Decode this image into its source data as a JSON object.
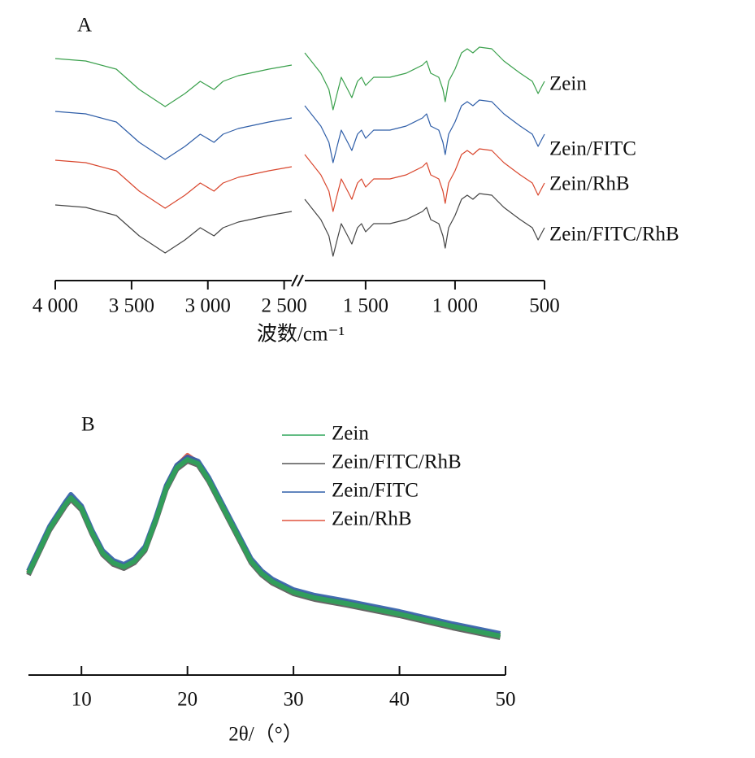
{
  "chart_data": [
    {
      "type": "line",
      "label": "A",
      "xlabel": "波数/cm⁻¹",
      "xlim": [
        4000,
        500
      ],
      "xbreak": [
        2450,
        1840
      ],
      "ylim": [
        0,
        270
      ],
      "xticks": [
        {
          "value": 4000,
          "label": "4 000"
        },
        {
          "value": 3500,
          "label": "3 500"
        },
        {
          "value": 3000,
          "label": "3 000"
        },
        {
          "value": 2500,
          "label": "2 500"
        },
        {
          "value": 1500,
          "label": "1 500"
        },
        {
          "value": 1000,
          "label": "1 000"
        },
        500
      ],
      "x": [
        4000,
        3800,
        3600,
        3450,
        3280,
        3150,
        3050,
        2960,
        2900,
        2800,
        2600,
        2450,
        2000,
        1840,
        1750,
        1705,
        1682,
        1659,
        1636,
        1600,
        1577,
        1545,
        1523,
        1500,
        1455,
        1364,
        1273,
        1182,
        1159,
        1136,
        1091,
        1068,
        1055,
        1036,
        1000,
        964,
        932,
        900,
        864,
        795,
        727,
        636,
        568,
        536,
        500
      ],
      "series": [
        {
          "name": "Zein",
          "color": "#3aa04c",
          "values": [
            248,
            245,
            235,
            210,
            189,
            205,
            220,
            210,
            220,
            227,
            235,
            240,
            null,
            255,
            230,
            210,
            185,
            205,
            225,
            210,
            200,
            220,
            225,
            215,
            225,
            225,
            230,
            240,
            245,
            230,
            225,
            210,
            195,
            220,
            235,
            255,
            260,
            255,
            262,
            260,
            245,
            230,
            220,
            205,
            220
          ]
        },
        {
          "name": "Zein/FITC",
          "color": "#2f5ea8",
          "values": [
            183,
            180,
            170,
            145,
            124,
            140,
            155,
            145,
            155,
            162,
            170,
            175,
            null,
            190,
            165,
            145,
            120,
            140,
            160,
            145,
            135,
            155,
            160,
            150,
            160,
            160,
            165,
            175,
            180,
            165,
            160,
            145,
            130,
            155,
            170,
            190,
            195,
            190,
            197,
            195,
            180,
            165,
            155,
            140,
            155
          ]
        },
        {
          "name": "Zein/RhB",
          "color": "#d9472e",
          "values": [
            123,
            120,
            110,
            85,
            64,
            80,
            95,
            85,
            95,
            102,
            110,
            115,
            null,
            130,
            105,
            85,
            60,
            80,
            100,
            85,
            75,
            95,
            100,
            90,
            100,
            100,
            105,
            115,
            120,
            105,
            100,
            85,
            70,
            95,
            110,
            130,
            135,
            130,
            137,
            135,
            120,
            105,
            95,
            80,
            95
          ]
        },
        {
          "name": "Zein/FITC/RhB",
          "color": "#444444",
          "values": [
            68,
            65,
            55,
            30,
            9,
            25,
            40,
            30,
            40,
            47,
            55,
            60,
            null,
            75,
            50,
            30,
            5,
            25,
            45,
            30,
            20,
            40,
            45,
            35,
            45,
            45,
            50,
            60,
            65,
            50,
            45,
            30,
            15,
            40,
            55,
            75,
            80,
            75,
            82,
            80,
            65,
            50,
            40,
            25,
            40
          ]
        }
      ]
    },
    {
      "type": "line",
      "label": "B",
      "xlabel": "2θ/（°）",
      "legend": "upper center",
      "xlim": [
        5,
        50
      ],
      "ylim": [
        0,
        300
      ],
      "xticks": [
        10,
        20,
        30,
        40,
        50
      ],
      "x": [
        5,
        7,
        8.5,
        9,
        10,
        11,
        12,
        13,
        14,
        15,
        16,
        17,
        18,
        19,
        20,
        21,
        22,
        23,
        24,
        25,
        26,
        27,
        28,
        30,
        32,
        35,
        40,
        45,
        48,
        49.5
      ],
      "series": [
        {
          "name": "Zein",
          "color": "#2ea55a",
          "values": [
            125,
            180,
            210,
            218,
            205,
            175,
            150,
            138,
            133,
            140,
            155,
            190,
            230,
            255,
            265,
            260,
            240,
            215,
            190,
            165,
            140,
            125,
            115,
            102,
            95,
            88,
            75,
            60,
            52,
            48
          ]
        },
        {
          "name": "Zein/FITC/RhB",
          "color": "#555555",
          "values": [
            123,
            178,
            208,
            216,
            203,
            173,
            148,
            136,
            131,
            138,
            153,
            188,
            228,
            253,
            263,
            258,
            238,
            213,
            188,
            163,
            138,
            123,
            113,
            100,
            93,
            86,
            73,
            58,
            50,
            46
          ]
        },
        {
          "name": "Zein/FITC",
          "color": "#2f5ea8",
          "values": [
            128,
            183,
            213,
            222,
            208,
            178,
            153,
            141,
            136,
            143,
            158,
            193,
            233,
            258,
            268,
            263,
            243,
            218,
            193,
            168,
            143,
            128,
            118,
            105,
            98,
            91,
            78,
            63,
            55,
            51
          ]
        },
        {
          "name": "Zein/RhB",
          "color": "#e0533f",
          "values": [
            126,
            181,
            211,
            219,
            206,
            176,
            151,
            139,
            134,
            141,
            156,
            191,
            232,
            257,
            270,
            261,
            241,
            216,
            191,
            166,
            141,
            126,
            116,
            103,
            96,
            89,
            76,
            61,
            53,
            49
          ]
        }
      ]
    }
  ]
}
